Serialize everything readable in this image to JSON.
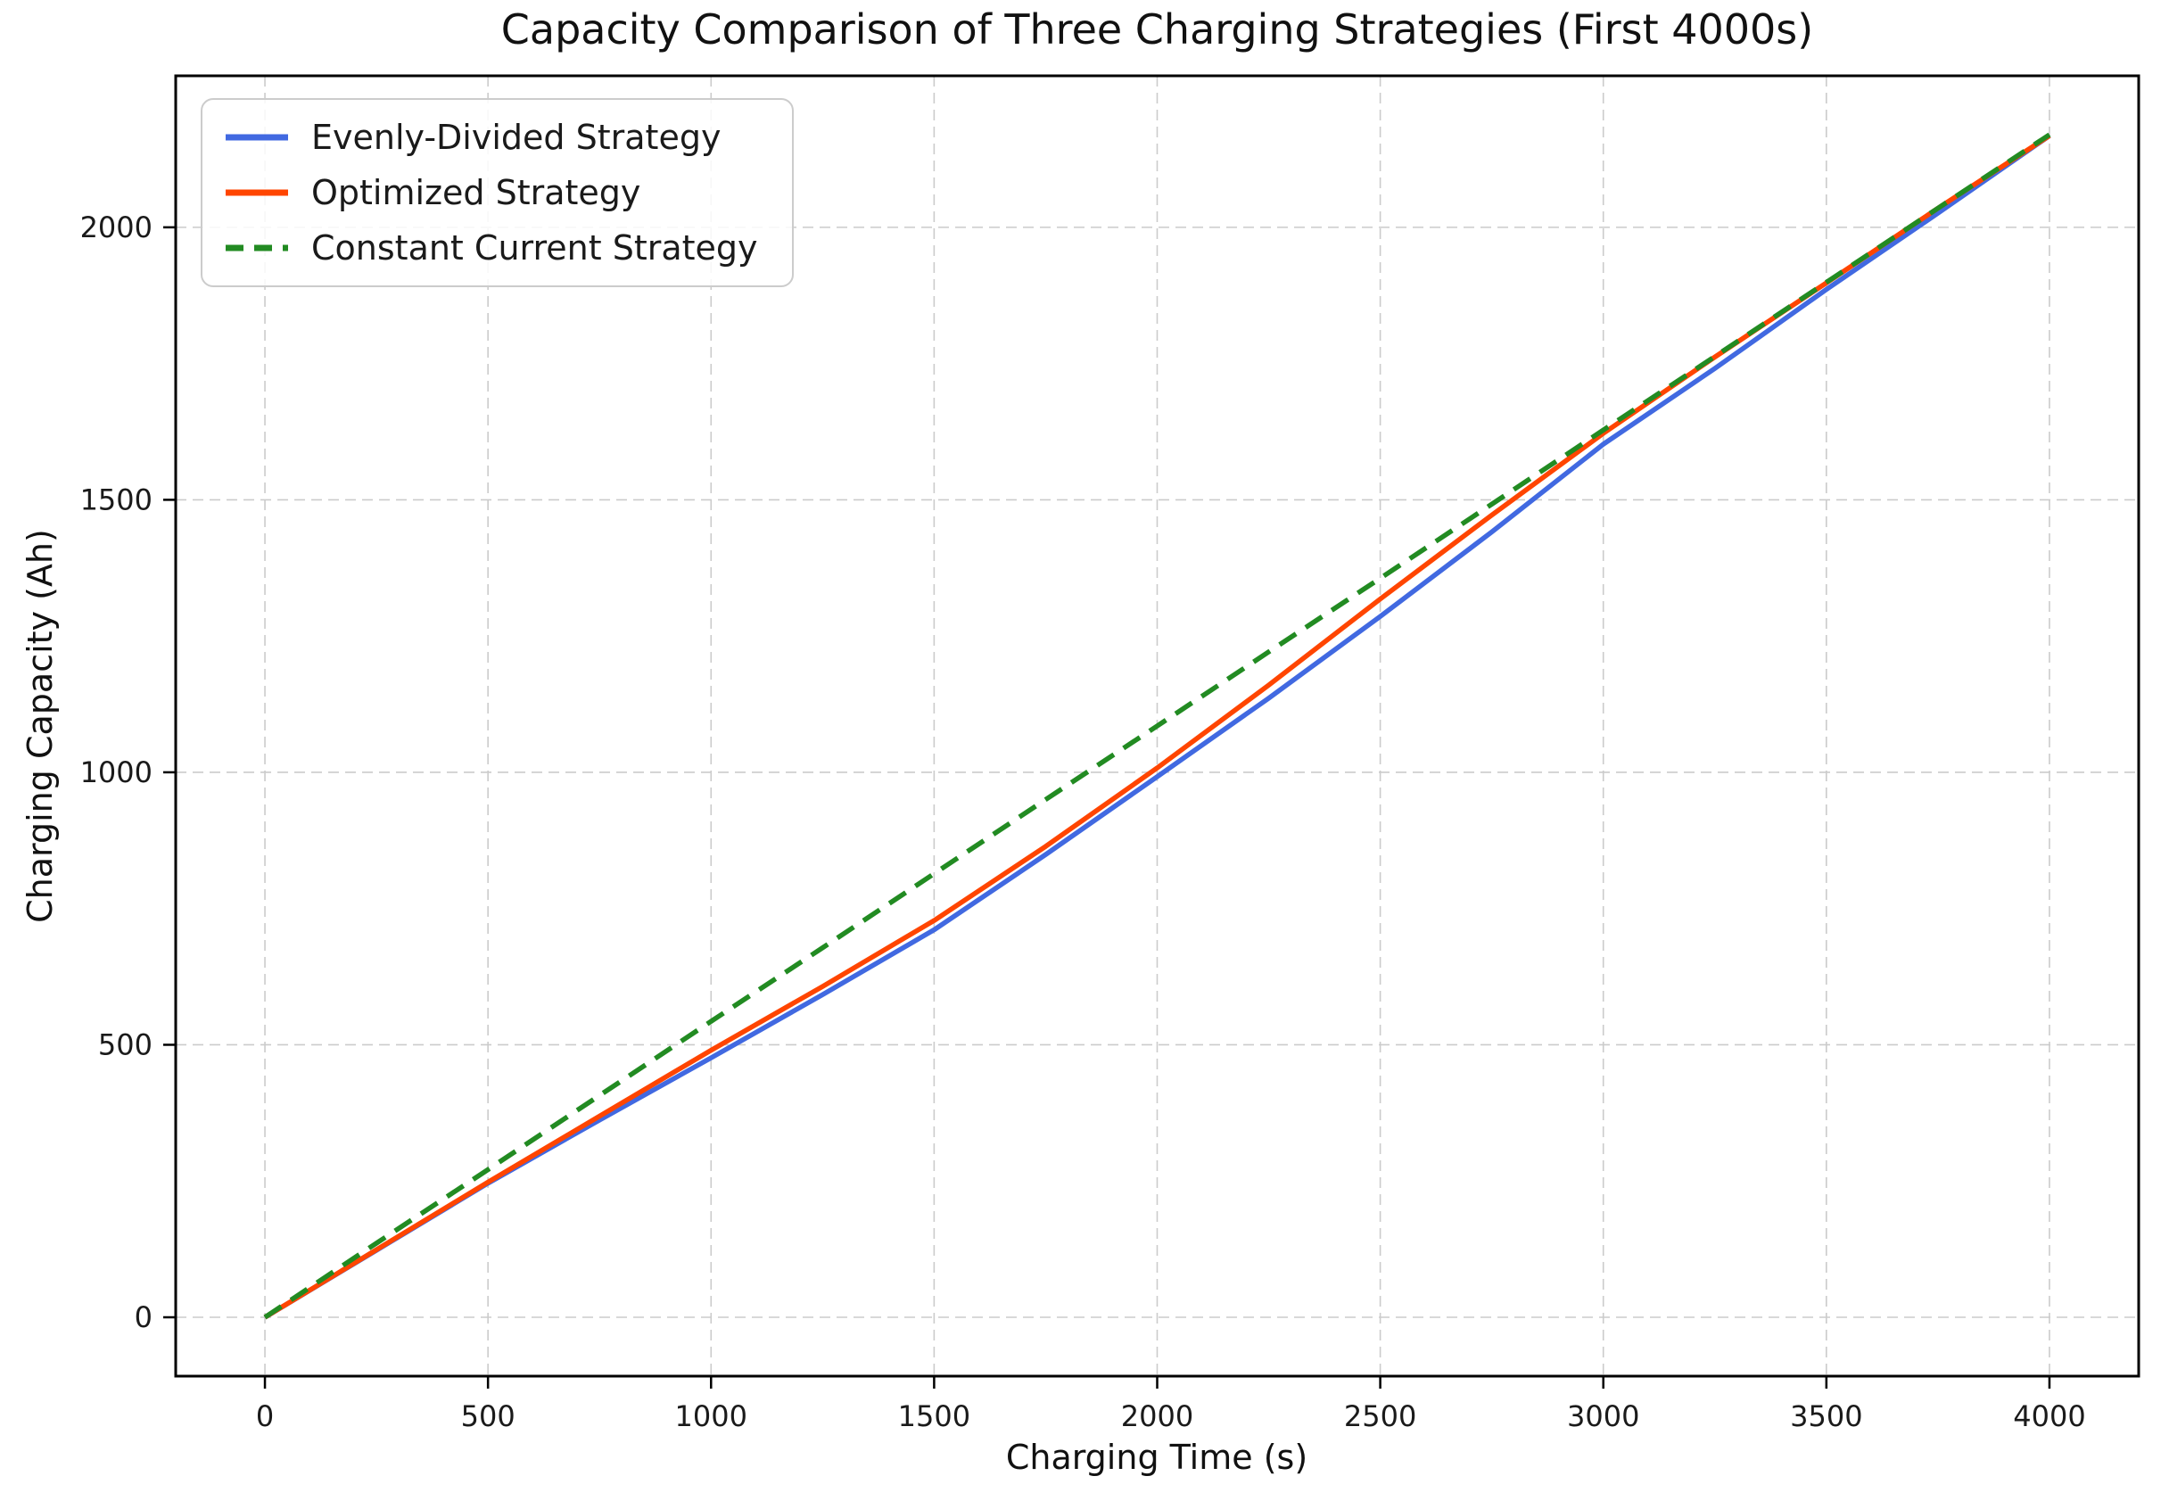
{
  "chart": {
    "title": "Capacity Comparison of Three Charging Strategies (First 4000s)",
    "xlabel": "Charging Time (s)",
    "ylabel": "Charging Capacity (Ah)"
  },
  "chart_data": {
    "type": "line",
    "title": "Capacity Comparison of Three Charging Strategies (First 4000s)",
    "xlabel": "Charging Time (s)",
    "ylabel": "Charging Capacity (Ah)",
    "x": [
      0,
      250,
      500,
      750,
      1000,
      1250,
      1500,
      1750,
      2000,
      2250,
      2500,
      2750,
      3000,
      3250,
      3500,
      3750,
      4000
    ],
    "series": [
      {
        "name": "Evenly-Divided Strategy",
        "color": "#4169E1",
        "style": "solid",
        "values": [
          0,
          123,
          246,
          362,
          476,
          592,
          711,
          849,
          992,
          1136,
          1286,
          1441,
          1602,
          1741,
          1886,
          2026,
          2168
        ]
      },
      {
        "name": "Optimized Strategy",
        "color": "#FF4500",
        "style": "solid",
        "values": [
          0,
          124,
          248,
          369,
          490,
          607,
          728,
          864,
          1008,
          1160,
          1318,
          1472,
          1622,
          1762,
          1898,
          2035,
          2168
        ]
      },
      {
        "name": "Constant Current Strategy",
        "color": "#228B22",
        "style": "dashed",
        "values": [
          0,
          136,
          271,
          407,
          543,
          678,
          814,
          950,
          1085,
          1221,
          1356,
          1492,
          1628,
          1763,
          1899,
          2035,
          2170
        ]
      }
    ],
    "xticks": [
      0,
      500,
      1000,
      1500,
      2000,
      2500,
      3000,
      3500,
      4000
    ],
    "yticks": [
      0,
      500,
      1000,
      1500,
      2000
    ],
    "xlim": [
      -200,
      4200
    ],
    "ylim": [
      -108,
      2278
    ],
    "grid": true,
    "legend_position": "upper left",
    "background": "#ffffff"
  }
}
